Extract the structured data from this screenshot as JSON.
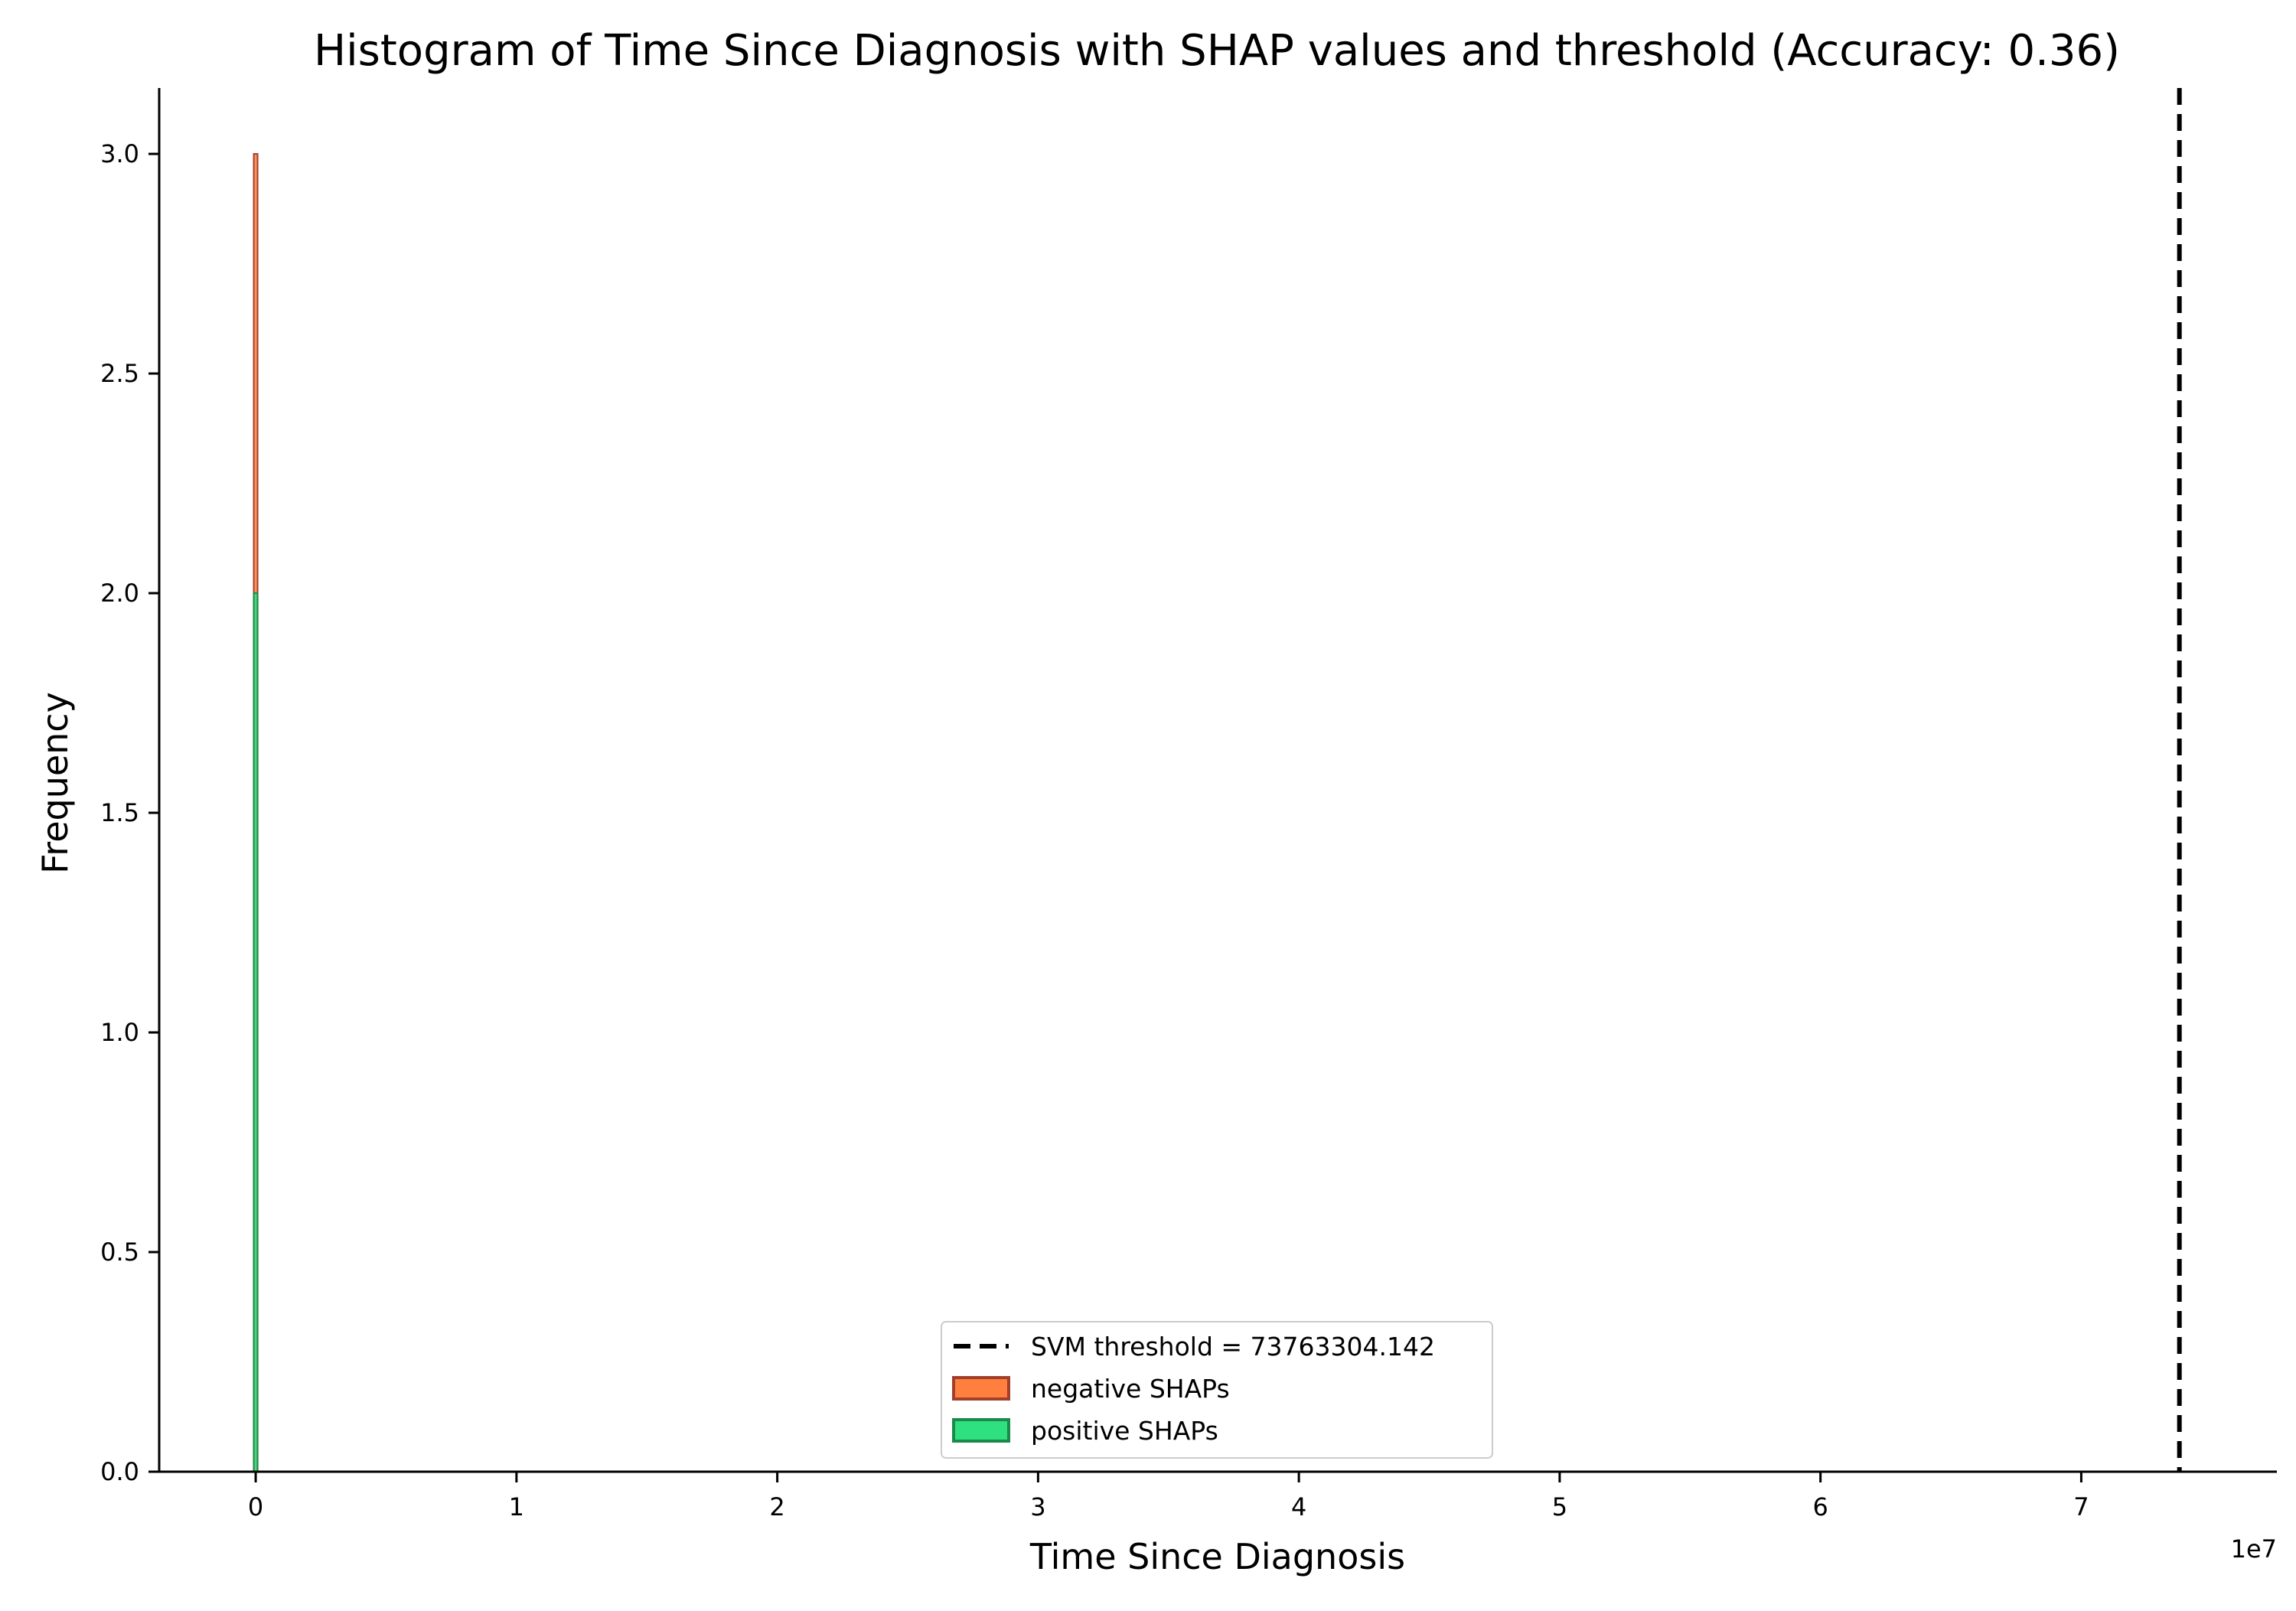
{
  "chart_data": {
    "type": "bar",
    "title": "Histogram of Time Since Diagnosis with SHAP values and threshold (Accuracy: 0.36)",
    "xlabel": "Time Since Diagnosis",
    "ylabel": "Frequency",
    "x_offset_label": "1e7",
    "xlim": [
      -3700000,
      77500000
    ],
    "ylim": [
      0,
      3.15
    ],
    "x_ticks": [
      0,
      10000000,
      20000000,
      30000000,
      40000000,
      50000000,
      60000000,
      70000000
    ],
    "x_tick_labels": [
      "0",
      "1",
      "2",
      "3",
      "4",
      "5",
      "6",
      "7"
    ],
    "y_ticks": [
      0,
      0.5,
      1.0,
      1.5,
      2.0,
      2.5,
      3.0
    ],
    "y_tick_labels": [
      "0.0",
      "0.5",
      "1.0",
      "1.5",
      "2.0",
      "2.5",
      "3.0"
    ],
    "series": [
      {
        "name": "negative SHAPs",
        "color": "#ff7f3f",
        "edge_color": "#a0402a",
        "bins": [
          {
            "x0": -40000,
            "x1": 40000,
            "count": 3
          }
        ]
      },
      {
        "name": "positive SHAPs",
        "color": "#2ee07f",
        "edge_color": "#1a8a4a",
        "bins": [
          {
            "x0": -40000,
            "x1": 40000,
            "count": 2
          }
        ]
      }
    ],
    "threshold": {
      "name": "SVM threshold = 73763304.142",
      "value": 73763304.142,
      "color": "#000000",
      "style": "dashed"
    },
    "legend_placement": "lower-center",
    "grid": false
  }
}
